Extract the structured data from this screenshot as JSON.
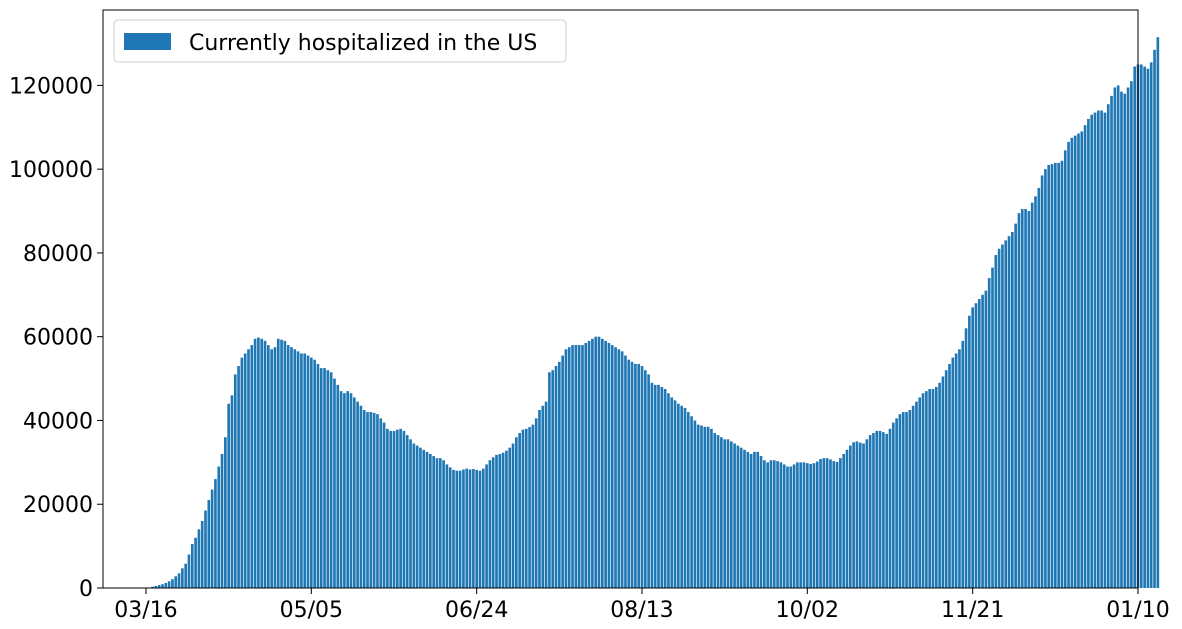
{
  "chart_data": {
    "type": "bar",
    "title": "",
    "xlabel": "",
    "ylabel": "",
    "series": [
      {
        "name": "Currently hospitalized in the US",
        "color": "#1f77b4",
        "start_date": "2020-03-16",
        "values": [
          0,
          0,
          300,
          500,
          700,
          900,
          1200,
          1600,
          2100,
          2800,
          3500,
          4700,
          5800,
          8000,
          10500,
          12000,
          14000,
          16000,
          18500,
          21000,
          23500,
          26000,
          29000,
          32000,
          36000,
          44000,
          46000,
          51000,
          53000,
          55000,
          56000,
          57000,
          58000,
          59500,
          59800,
          59500,
          59000,
          58000,
          57000,
          57500,
          59500,
          59300,
          59000,
          58000,
          57500,
          57000,
          56500,
          56000,
          56000,
          55500,
          55000,
          54500,
          53500,
          52500,
          52500,
          52000,
          51500,
          50000,
          48500,
          47000,
          46500,
          47000,
          46500,
          45500,
          44500,
          43500,
          42500,
          42000,
          42000,
          41800,
          41500,
          40500,
          39500,
          38000,
          37500,
          37500,
          37800,
          38000,
          37500,
          36500,
          35500,
          34500,
          34000,
          33500,
          33000,
          32500,
          32000,
          31500,
          31000,
          31000,
          30500,
          29500,
          28800,
          28200,
          28000,
          28000,
          28300,
          28500,
          28300,
          28400,
          28200,
          28000,
          28500,
          29500,
          30500,
          31200,
          31800,
          32000,
          32300,
          32800,
          33500,
          34500,
          36000,
          37000,
          37800,
          38000,
          38400,
          39000,
          40500,
          42500,
          43500,
          44500,
          51500,
          52000,
          53000,
          54000,
          55500,
          57000,
          57500,
          58000,
          58000,
          58000,
          58000,
          58500,
          59000,
          59500,
          60000,
          60000,
          59500,
          59000,
          58500,
          58000,
          57500,
          57000,
          56500,
          55500,
          54500,
          54000,
          53500,
          53500,
          53000,
          52000,
          51000,
          49000,
          48500,
          48500,
          48000,
          47500,
          46500,
          45500,
          44800,
          44000,
          43500,
          43000,
          42000,
          41000,
          40000,
          39000,
          38800,
          38500,
          38500,
          38000,
          37000,
          36500,
          36000,
          35500,
          35500,
          35000,
          34500,
          34000,
          33500,
          33000,
          32500,
          32000,
          32500,
          32500,
          31500,
          30500,
          30000,
          30500,
          30500,
          30300,
          30000,
          29500,
          29000,
          29000,
          29500,
          30000,
          30000,
          30000,
          29800,
          29600,
          29800,
          30200,
          30800,
          31000,
          31000,
          30700,
          30300,
          30100,
          31000,
          32000,
          33000,
          34000,
          34800,
          35000,
          34700,
          34500,
          35500,
          36500,
          37000,
          37500,
          37500,
          37200,
          36800,
          38000,
          39500,
          40500,
          41500,
          42000,
          42000,
          42500,
          43500,
          44500,
          45500,
          46500,
          47000,
          47500,
          47500,
          48000,
          49000,
          50500,
          52000,
          53500,
          55000,
          56000,
          57000,
          59000,
          62000,
          65000,
          67000,
          68000,
          69000,
          70000,
          71000,
          74000,
          76500,
          79500,
          81000,
          82000,
          83000,
          84000,
          85000,
          87000,
          89500,
          90500,
          90500,
          90000,
          92000,
          93500,
          95500,
          98500,
          100000,
          101000,
          101200,
          101500,
          101500,
          102000,
          104500,
          106500,
          107500,
          108000,
          108500,
          109000,
          110500,
          112000,
          113000,
          113500,
          114000,
          114000,
          113500,
          115500,
          117500,
          119500,
          120000,
          118500,
          118000,
          119500,
          121000,
          124500,
          125000,
          125000,
          124500,
          124000,
          125500,
          128500,
          131500
        ]
      }
    ],
    "xlim": [
      "2020-03-03",
      "2021-01-10"
    ],
    "xticks": [
      "2020-03-16",
      "2020-05-05",
      "2020-06-24",
      "2020-08-13",
      "2020-10-02",
      "2020-11-21",
      "2021-01-10"
    ],
    "xtick_labels": [
      "03/16",
      "05/05",
      "06/24",
      "08/13",
      "10/02",
      "11/21",
      "01/10"
    ],
    "ylim": [
      0,
      138000
    ],
    "yticks": [
      0,
      20000,
      40000,
      60000,
      80000,
      100000,
      120000
    ],
    "ytick_labels": [
      "0",
      "20000",
      "40000",
      "60000",
      "80000",
      "100000",
      "120000"
    ],
    "grid": false,
    "legend": {
      "placement": "top-left"
    }
  }
}
